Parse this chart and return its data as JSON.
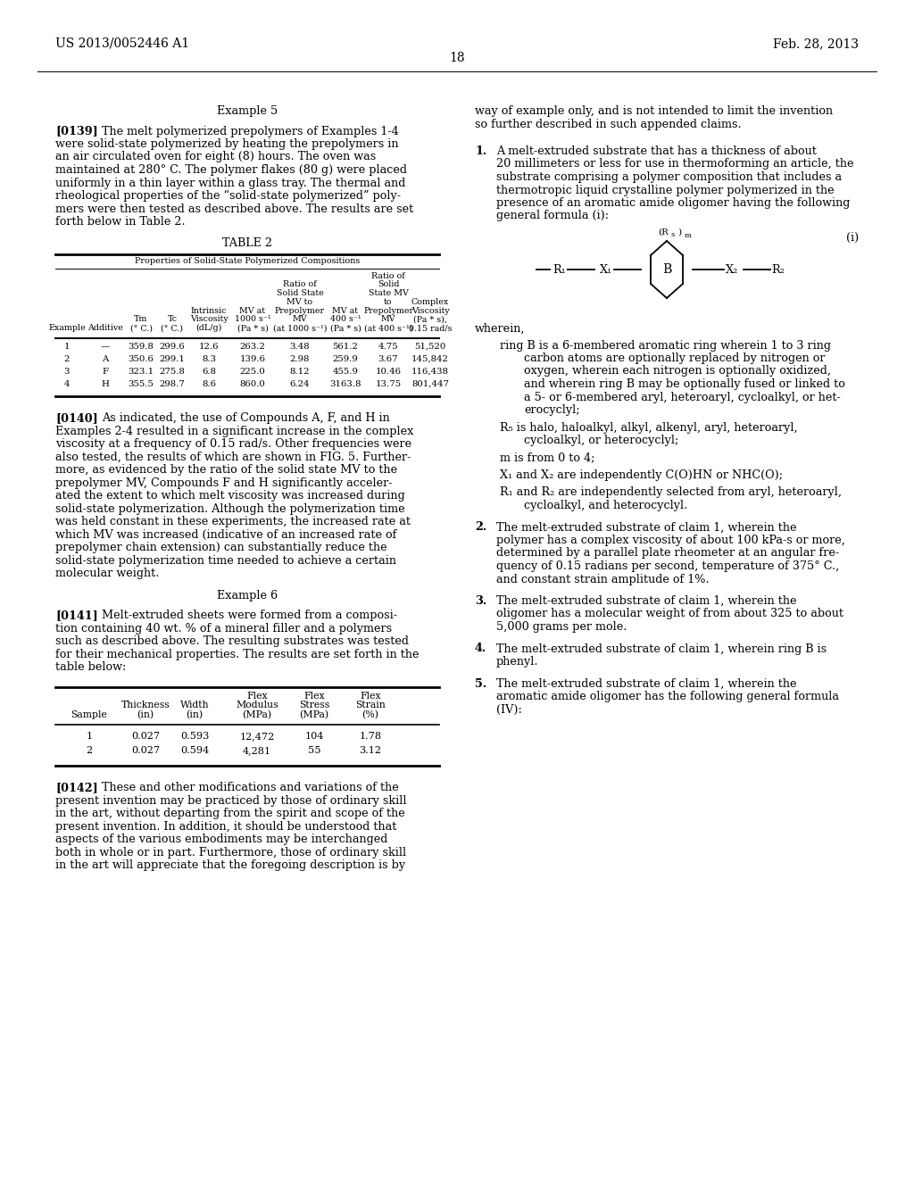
{
  "bg_color": "#ffffff",
  "header_left": "US 2013/0052446 A1",
  "header_right": "Feb. 28, 2013",
  "page_number": "18",
  "font_family": "DejaVu Serif",
  "body_fontsize": 9.0,
  "small_fontsize": 7.5,
  "header_fontsize": 10.5,
  "table2_data": {
    "subtitle": "Properties of Solid-State Polymerized Compositions",
    "col_headers": [
      "Example",
      "Additive",
      "Tm\n(° C.)",
      "Tc\n(° C.)",
      "Intrinsic\nViscosity\n(dL/g)",
      "MV at\n1000 s⁻¹\n(Pa * s)",
      "Ratio of\nSolid State\nMV to\nPrepolymer\nMV\n(at 1000 s⁻¹)",
      "MV at\n400 s⁻¹\n(Pa * s)",
      "Ratio of\nSolid\nState MV\nto\nPrepolymer\nMV\n(at 400 s⁻¹)",
      "Complex\nViscosity\n(Pa * s),\n0.15 rad/s"
    ],
    "rows": [
      [
        "1",
        "—",
        "359.8",
        "299.6",
        "12.6",
        "263.2",
        "3.48",
        "561.2",
        "4.75",
        "51,520"
      ],
      [
        "2",
        "A",
        "350.6",
        "299.1",
        "8.3",
        "139.6",
        "2.98",
        "259.9",
        "3.67",
        "145,842"
      ],
      [
        "3",
        "F",
        "323.1",
        "275.8",
        "6.8",
        "225.0",
        "8.12",
        "455.9",
        "10.46",
        "116,438"
      ],
      [
        "4",
        "H",
        "355.5",
        "298.7",
        "8.6",
        "860.0",
        "6.24",
        "3163.8",
        "13.75",
        "801,447"
      ]
    ]
  },
  "table3_data": {
    "col_headers": [
      "Sample",
      "Thickness\n(in)",
      "Width\n(in)",
      "Flex\nModulus\n(MPa)",
      "Flex\nStress\n(MPa)",
      "Flex\nStrain\n(%)"
    ],
    "rows": [
      [
        "1",
        "0.027",
        "0.593",
        "12,472",
        "104",
        "1.78"
      ],
      [
        "2",
        "0.027",
        "0.594",
        "4,281",
        "55",
        "3.12"
      ]
    ]
  },
  "left_texts": {
    "example5_title": "Example 5",
    "p0139_tag": "[0139]",
    "p0139_lines": [
      "The melt polymerized prepolymers of Examples 1-4",
      "were solid-state polymerized by heating the prepolymers in",
      "an air circulated oven for eight (8) hours. The oven was",
      "maintained at 280° C. The polymer flakes (80 g) were placed",
      "uniformly in a thin layer within a glass tray. The thermal and",
      "rheological properties of the “solid-state polymerized” poly-",
      "mers were then tested as described above. The results are set",
      "forth below in Table 2."
    ],
    "table2_title": "TABLE 2",
    "p0140_tag": "[0140]",
    "p0140_lines": [
      "As indicated, the use of Compounds A, F, and H in",
      "Examples 2-4 resulted in a significant increase in the complex",
      "viscosity at a frequency of 0.15 rad/s. Other frequencies were",
      "also tested, the results of which are shown in FIG. 5. Further-",
      "more, as evidenced by the ratio of the solid state MV to the",
      "prepolymer MV, Compounds F and H significantly acceler-",
      "ated the extent to which melt viscosity was increased during",
      "solid-state polymerization. Although the polymerization time",
      "was held constant in these experiments, the increased rate at",
      "which MV was increased (indicative of an increased rate of",
      "prepolymer chain extension) can substantially reduce the",
      "solid-state polymerization time needed to achieve a certain",
      "molecular weight."
    ],
    "example6_title": "Example 6",
    "p0141_tag": "[0141]",
    "p0141_lines": [
      "Melt-extruded sheets were formed from a composi-",
      "tion containing 40 wt. % of a mineral filler and a polymers",
      "such as described above. The resulting substrates was tested",
      "for their mechanical properties. The results are set forth in the",
      "table below:"
    ],
    "p0142_tag": "[0142]",
    "p0142_lines": [
      "These and other modifications and variations of the",
      "present invention may be practiced by those of ordinary skill",
      "in the art, without departing from the spirit and scope of the",
      "present invention. In addition, it should be understood that",
      "aspects of the various embodiments may be interchanged",
      "both in whole or in part. Furthermore, those of ordinary skill",
      "in the art will appreciate that the foregoing description is by"
    ]
  },
  "right_texts": {
    "continuation_lines": [
      "way of example only, and is not intended to limit the invention",
      "so further described in such appended claims."
    ],
    "claim1_num": "1.",
    "claim1_lines": [
      "A melt-extruded substrate that has a thickness of about",
      "20 millimeters or less for use in thermoforming an article, the",
      "substrate comprising a polymer composition that includes a",
      "thermotropic liquid crystalline polymer polymerized in the",
      "presence of an aromatic amide oligomer having the following",
      "general formula (i):"
    ],
    "formula_label": "(i)",
    "wherein_text": "wherein,",
    "ring_b_lines": [
      "ring B is a 6-membered aromatic ring wherein 1 to 3 ring",
      "carbon atoms are optionally replaced by nitrogen or",
      "oxygen, wherein each nitrogen is optionally oxidized,",
      "and wherein ring B may be optionally fused or linked to",
      "a 5- or 6-membered aryl, heteroaryl, cycloalkyl, or het-",
      "erocyclyl;"
    ],
    "rs_lines": [
      "R₅ is halo, haloalkyl, alkyl, alkenyl, aryl, heteroaryl,",
      "cycloalkyl, or heterocyclyl;"
    ],
    "m_line": "m is from 0 to 4;",
    "x_line": "X₁ and X₂ are independently C(O)HN or NHC(O);",
    "r_lines": [
      "R₁ and R₂ are independently selected from aryl, heteroaryl,",
      "cycloalkyl, and heterocyclyl."
    ],
    "claim2_num": "2.",
    "claim2_lines": [
      "The melt-extruded substrate of claim 1, wherein the",
      "polymer has a complex viscosity of about 100 kPa-s or more,",
      "determined by a parallel plate rheometer at an angular fre-",
      "quency of 0.15 radians per second, temperature of 375° C.,",
      "and constant strain amplitude of 1%."
    ],
    "claim3_num": "3.",
    "claim3_lines": [
      "The melt-extruded substrate of claim 1, wherein the",
      "oligomer has a molecular weight of from about 325 to about",
      "5,000 grams per mole."
    ],
    "claim4_num": "4.",
    "claim4_lines": [
      "The melt-extruded substrate of claim 1, wherein ring B is",
      "phenyl."
    ],
    "claim5_num": "5.",
    "claim5_lines": [
      "The melt-extruded substrate of claim 1, wherein the",
      "aromatic amide oligomer has the following general formula",
      "(IV):"
    ]
  }
}
